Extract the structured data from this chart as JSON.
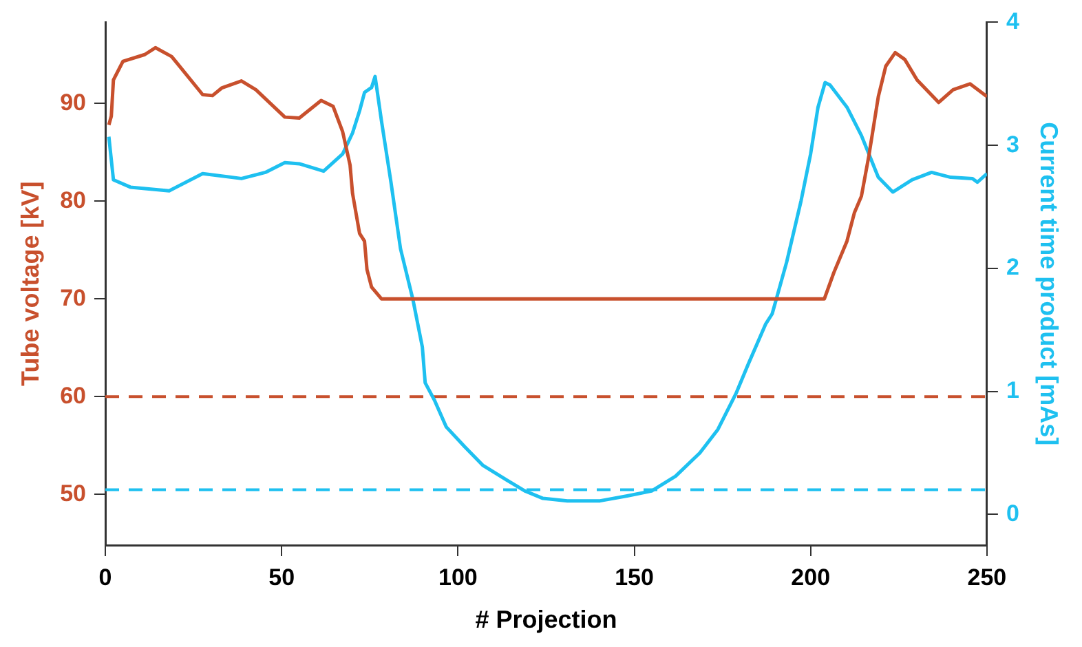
{
  "chart_data": {
    "type": "line",
    "xlabel": "# Projection",
    "ylabel": "Tube voltage [kV]",
    "y2label": "Current time product [mAs]",
    "xlim": [
      0,
      250
    ],
    "xticks": [
      0,
      50,
      100,
      150,
      200,
      250
    ],
    "ylim": [
      44.8,
      98.3
    ],
    "yticks": [
      50,
      60,
      70,
      80,
      90
    ],
    "y2lim": [
      -0.25,
      4
    ],
    "y2ticks": [
      0,
      1,
      2,
      3,
      4
    ],
    "grid": false,
    "legend": false,
    "marker": "none",
    "line_style": "solid",
    "series": [
      {
        "color": "#c8502d",
        "x": [
          1,
          1.7,
          2.3,
          5,
          11.2,
          14.2,
          18.8,
          27.6,
          30.4,
          33.1,
          38.6,
          42.7,
          50.9,
          55,
          61.2,
          64.6,
          67.3,
          69.4,
          70.1,
          72.1,
          73.5,
          74.2,
          75.5,
          78.3,
          203.9,
          206.6,
          210.3,
          212.4,
          214.4,
          216.5,
          219.2,
          221.3,
          224,
          226.7,
          230.2,
          236.3,
          240.4,
          245.2,
          250
        ],
        "values": [
          87.8,
          88.7,
          92.4,
          94.3,
          95,
          95.7,
          94.8,
          90.9,
          90.8,
          91.6,
          92.3,
          91.4,
          88.6,
          88.5,
          90.3,
          89.7,
          87.1,
          83.7,
          80.8,
          76.7,
          75.9,
          73,
          71.2,
          70,
          70,
          72.7,
          75.9,
          78.8,
          80.5,
          84.6,
          90.7,
          93.8,
          95.2,
          94.5,
          92.4,
          90.1,
          91.4,
          92,
          90.7
        ]
      },
      {
        "color": "#1ec0f0",
        "axis": "y2",
        "x": [
          1,
          2.3,
          7.1,
          18.1,
          27.6,
          38.6,
          45.4,
          50.9,
          55,
          61.9,
          67.3,
          70.1,
          72.1,
          73.5,
          75.5,
          76.5,
          78.3,
          81,
          83.7,
          87.2,
          89.9,
          90.7,
          93.3,
          96.7,
          101.9,
          107,
          113.8,
          119,
          124.1,
          131,
          140.3,
          148,
          154.9,
          161.7,
          168.6,
          173.7,
          178.8,
          182.3,
          187.3,
          189.1,
          193.2,
          197.3,
          200,
          202.1,
          204.1,
          205.5,
          210.3,
          214.4,
          219.2,
          223.3,
          228.8,
          234.3,
          239.7,
          245.9,
          247.3,
          250
        ],
        "values": [
          3.07,
          2.72,
          2.66,
          2.63,
          2.77,
          2.73,
          2.78,
          2.86,
          2.85,
          2.79,
          2.93,
          3.1,
          3.28,
          3.43,
          3.47,
          3.56,
          3.2,
          2.7,
          2.16,
          1.75,
          1.36,
          1.07,
          0.93,
          0.71,
          0.55,
          0.4,
          0.28,
          0.19,
          0.13,
          0.11,
          0.11,
          0.15,
          0.19,
          0.31,
          0.5,
          0.69,
          0.98,
          1.22,
          1.55,
          1.63,
          2.05,
          2.55,
          2.93,
          3.31,
          3.51,
          3.49,
          3.31,
          3.08,
          2.74,
          2.62,
          2.72,
          2.78,
          2.74,
          2.73,
          2.7,
          2.77
        ]
      }
    ],
    "ref_lines": [
      {
        "axis": "y",
        "value": 60,
        "color": "#c8502d",
        "line_style": "dashed"
      },
      {
        "axis": "y2",
        "value": 0.2,
        "color": "#1ec0f0",
        "line_style": "dashed"
      }
    ]
  }
}
